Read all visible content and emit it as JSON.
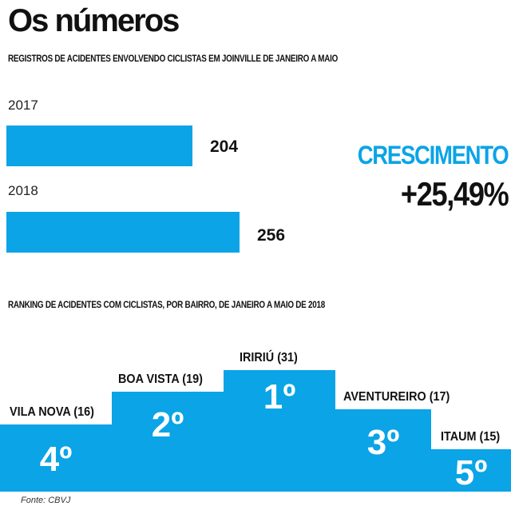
{
  "title": "Os números",
  "source": "Fonte: CBVJ",
  "chart_data": [
    {
      "type": "bar",
      "title": "REGISTROS DE ACIDENTES ENVOLVENDO CICLISTAS EM JOINVILLE DE JANEIRO A MAIO",
      "categories": [
        "2017",
        "2018"
      ],
      "values": [
        204,
        256
      ],
      "value_labels": [
        "204",
        "256"
      ],
      "growth_label": "CRESCIMENTO",
      "growth_value": "+25,49%",
      "bar_color": "#0aa4e7"
    },
    {
      "type": "bar",
      "title": "RANKING DE ACIDENTES COM CICLISTAS, POR BAIRRO, DE JANEIRO A MAIO DE 2018",
      "categories": [
        "VILA NOVA",
        "BOA VISTA",
        "IRIRIÚ",
        "AVENTUREIRO",
        "ITAUM"
      ],
      "values": [
        16,
        19,
        31,
        17,
        15
      ],
      "labels": [
        "VILA NOVA (16)",
        "BOA VISTA (19)",
        "IRIRIÚ (31)",
        "AVENTUREIRO (17)",
        "ITAUM (15)"
      ],
      "ranks": [
        "4º",
        "2º",
        "1º",
        "3º",
        "5º"
      ],
      "bar_color": "#0aa4e7"
    }
  ]
}
